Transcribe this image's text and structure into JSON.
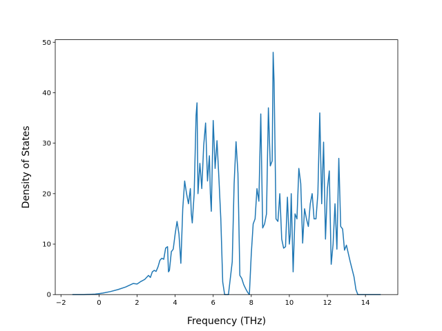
{
  "chart_data": {
    "type": "line",
    "title": "",
    "xlabel": "Frequency (THz)",
    "ylabel": "Density of States",
    "xlim": [
      -2.3,
      15.7
    ],
    "ylim": [
      0,
      50.5
    ],
    "xticks": [
      -2,
      0,
      2,
      4,
      6,
      8,
      10,
      12,
      14
    ],
    "yticks": [
      0,
      10,
      20,
      30,
      40,
      50
    ],
    "grid": false,
    "legend": "none",
    "series": [
      {
        "color": "#1f77b4",
        "x": [
          -1.4,
          -0.8,
          -0.2,
          0.2,
          0.6,
          1.0,
          1.4,
          1.8,
          2.0,
          2.2,
          2.4,
          2.6,
          2.7,
          2.8,
          2.9,
          3.0,
          3.1,
          3.2,
          3.3,
          3.4,
          3.5,
          3.6,
          3.65,
          3.7,
          3.8,
          3.9,
          4.0,
          4.1,
          4.2,
          4.3,
          4.4,
          4.5,
          4.6,
          4.7,
          4.8,
          4.85,
          4.9,
          5.0,
          5.1,
          5.15,
          5.2,
          5.3,
          5.4,
          5.5,
          5.6,
          5.7,
          5.8,
          5.85,
          5.9,
          6.0,
          6.05,
          6.1,
          6.2,
          6.3,
          6.4,
          6.5,
          6.6,
          6.7,
          6.8,
          7.0,
          7.1,
          7.2,
          7.3,
          7.4,
          7.5,
          7.6,
          7.7,
          7.8,
          7.9,
          8.0,
          8.1,
          8.2,
          8.3,
          8.4,
          8.5,
          8.6,
          8.7,
          8.8,
          8.9,
          9.0,
          9.1,
          9.15,
          9.2,
          9.3,
          9.4,
          9.5,
          9.6,
          9.7,
          9.8,
          9.9,
          10.0,
          10.05,
          10.1,
          10.2,
          10.3,
          10.4,
          10.5,
          10.6,
          10.7,
          10.8,
          10.9,
          11.0,
          11.1,
          11.2,
          11.3,
          11.4,
          11.5,
          11.6,
          11.7,
          11.8,
          11.9,
          12.0,
          12.1,
          12.2,
          12.3,
          12.4,
          12.5,
          12.6,
          12.7,
          12.8,
          12.9,
          13.0,
          13.2,
          13.4,
          13.5,
          13.6,
          14.0,
          14.4,
          14.8
        ],
        "y": [
          0,
          0,
          0.1,
          0.3,
          0.6,
          1.0,
          1.5,
          2.2,
          2.1,
          2.6,
          3.0,
          3.8,
          3.4,
          4.5,
          4.8,
          4.6,
          5.5,
          6.8,
          7.2,
          7.0,
          9.2,
          9.5,
          4.5,
          4.8,
          8.5,
          9.0,
          12.0,
          14.5,
          12.0,
          6.2,
          17.0,
          22.5,
          20.0,
          18.0,
          21.0,
          16.0,
          14.2,
          20.0,
          35.5,
          38.0,
          20.0,
          26.0,
          21.0,
          29.5,
          34.0,
          22.5,
          27.5,
          20.0,
          16.5,
          34.5,
          30.0,
          25.0,
          30.5,
          23.0,
          15.0,
          2.5,
          0,
          0,
          0,
          6.5,
          22.0,
          30.3,
          24.0,
          3.8,
          3.2,
          2.0,
          1.2,
          0.5,
          0,
          8.0,
          14.0,
          15.0,
          21.0,
          18.5,
          35.8,
          13.2,
          14.0,
          16.0,
          37.0,
          25.5,
          26.5,
          48.0,
          42.0,
          15.0,
          14.5,
          20.0,
          11.0,
          9.2,
          9.5,
          19.3,
          10.0,
          12.0,
          20.0,
          4.5,
          16.0,
          15.0,
          25.0,
          22.0,
          10.2,
          17.0,
          15.0,
          13.5,
          18.0,
          20.0,
          15.0,
          15.0,
          20.0,
          36.0,
          18.0,
          30.2,
          11.0,
          21.0,
          24.5,
          6.0,
          10.0,
          18.0,
          9.0,
          27.0,
          13.5,
          13.0,
          8.8,
          9.8,
          6.5,
          3.5,
          1.0,
          0,
          0,
          0,
          0
        ]
      }
    ]
  }
}
